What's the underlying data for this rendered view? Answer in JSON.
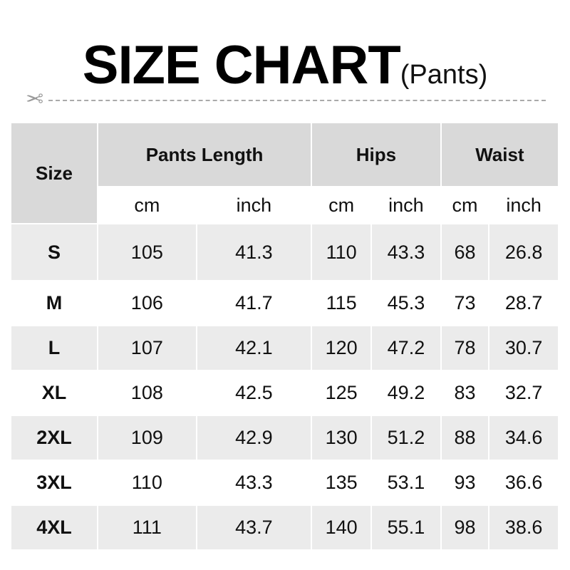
{
  "title": {
    "main": "SIZE CHART",
    "sub": "(Pants)"
  },
  "header": {
    "size": "Size",
    "groups": [
      "Pants Length",
      "Hips",
      "Waist"
    ],
    "units": [
      "cm",
      "inch",
      "cm",
      "inch",
      "cm",
      "inch"
    ]
  },
  "rows": [
    [
      "S",
      "105",
      "41.3",
      "110",
      "43.3",
      "68",
      "26.8"
    ],
    [
      "M",
      "106",
      "41.7",
      "115",
      "45.3",
      "73",
      "28.7"
    ],
    [
      "L",
      "107",
      "42.1",
      "120",
      "47.2",
      "78",
      "30.7"
    ],
    [
      "XL",
      "108",
      "42.5",
      "125",
      "49.2",
      "83",
      "32.7"
    ],
    [
      "2XL",
      "109",
      "42.9",
      "130",
      "51.2",
      "88",
      "34.6"
    ],
    [
      "3XL",
      "110",
      "43.3",
      "135",
      "53.1",
      "93",
      "36.6"
    ],
    [
      "4XL",
      "111",
      "43.7",
      "140",
      "55.1",
      "98",
      "38.6"
    ]
  ]
}
